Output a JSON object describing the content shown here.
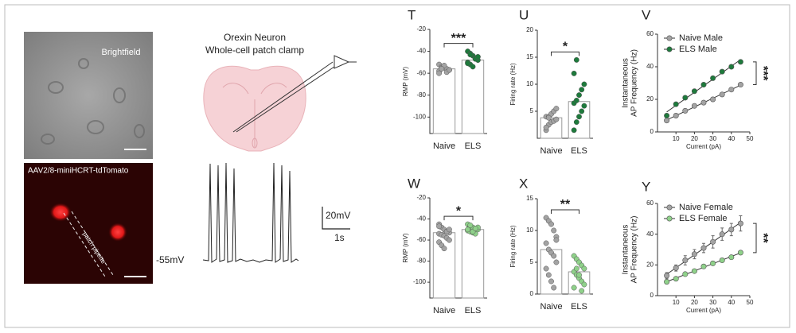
{
  "figure": {
    "brightfield": "Brightfield",
    "virus": "AAV2/8-miniHCRT-tdTomato",
    "pipette": "patch pipette",
    "diagram_title": [
      "Orexin Neuron",
      "Whole-cell patch clamp"
    ],
    "scale_v": "20mV",
    "scale_t": "1s",
    "baseline": "-55mV"
  },
  "chart_data": [
    {
      "type": "bar",
      "label": "T",
      "ylabel": "RMP (mV)",
      "categories": [
        "Naive",
        "ELS"
      ],
      "values": [
        -56,
        -48
      ],
      "points": [
        [
          -52,
          -54,
          -55,
          -56,
          -57,
          -58,
          -55,
          -53,
          -59,
          -57,
          -60,
          -56
        ],
        [
          -40,
          -42,
          -44,
          -46,
          -48,
          -50,
          -52,
          -54,
          -47,
          -45,
          -51,
          -43
        ]
      ],
      "colors": [
        "#a3a3a3",
        "#1e7a3c"
      ],
      "significance": "***",
      "ylim": [
        -115,
        -20
      ],
      "yticks": [
        -100,
        -80,
        -60,
        -40,
        -20
      ]
    },
    {
      "type": "bar",
      "label": "U",
      "ylabel": "Firing rate (Hz)",
      "categories": [
        "Naive",
        "ELS"
      ],
      "values": [
        3.8,
        6.8
      ],
      "points": [
        [
          1.5,
          2.5,
          3,
          3.2,
          3.5,
          4,
          4,
          4.5,
          5,
          5.5,
          2,
          3.8
        ],
        [
          1.5,
          3,
          4,
          5,
          6,
          6.5,
          7,
          8,
          9,
          10,
          12,
          14.5
        ]
      ],
      "colors": [
        "#a3a3a3",
        "#1e7a3c"
      ],
      "significance": "*",
      "ylim": [
        0,
        20
      ],
      "yticks": [
        5,
        10,
        15,
        20
      ]
    },
    {
      "type": "line",
      "label": "V",
      "ylabel": [
        "Instantaneous",
        "AP Frequency (Hz)"
      ],
      "xlabel": "Current (pA)",
      "x": [
        5,
        10,
        15,
        20,
        25,
        30,
        35,
        40,
        45
      ],
      "series": [
        {
          "name": "Naive Male",
          "color": "#a3a3a3",
          "values": [
            7,
            10,
            13,
            16,
            18,
            20,
            23,
            26,
            29
          ]
        },
        {
          "name": "ELS Male",
          "color": "#1e7a3c",
          "values": [
            10,
            17,
            21,
            25,
            29,
            33,
            37,
            40,
            43
          ]
        }
      ],
      "significance": "***",
      "xlim": [
        0,
        50
      ],
      "ylim": [
        0,
        60
      ],
      "xticks": [
        10,
        20,
        30,
        40,
        50
      ],
      "yticks": [
        0,
        20,
        40,
        60
      ]
    },
    {
      "type": "bar",
      "label": "W",
      "ylabel": "RMP (mV)",
      "categories": [
        "Naive",
        "ELS"
      ],
      "values": [
        -53,
        -50
      ],
      "points": [
        [
          -45,
          -48,
          -50,
          -52,
          -53,
          -54,
          -55,
          -56,
          -58,
          -60,
          -62,
          -65,
          -68,
          -52,
          -50,
          -47
        ],
        [
          -45,
          -47,
          -48,
          -49,
          -50,
          -51,
          -52,
          -53,
          -54,
          -48,
          -50,
          -46,
          -52,
          -49
        ]
      ],
      "colors": [
        "#a3a3a3",
        "#8fd18a"
      ],
      "significance": "*",
      "ylim": [
        -115,
        -20
      ],
      "yticks": [
        -100,
        -80,
        -60,
        -40,
        -20
      ]
    },
    {
      "type": "bar",
      "label": "X",
      "ylabel": "Firing rate (Hz)",
      "categories": [
        "Naive",
        "ELS"
      ],
      "values": [
        7,
        3.5
      ],
      "points": [
        [
          12,
          11.5,
          11,
          10,
          9,
          8,
          7,
          6.5,
          6,
          5,
          4,
          3,
          2,
          1,
          8.5
        ],
        [
          6,
          5.5,
          5,
          4.5,
          4,
          3.5,
          3,
          2.5,
          2,
          1.5,
          1,
          4,
          3,
          0.5
        ]
      ],
      "colors": [
        "#a3a3a3",
        "#8fd18a"
      ],
      "significance": "**",
      "ylim": [
        0,
        15
      ],
      "yticks": [
        0,
        5,
        10,
        15
      ]
    },
    {
      "type": "line",
      "label": "Y",
      "ylabel": [
        "Instantaneous",
        "AP Frequency (Hz)"
      ],
      "xlabel": "Current (pA)",
      "x": [
        5,
        10,
        15,
        20,
        25,
        30,
        35,
        40,
        45
      ],
      "series": [
        {
          "name": "Naive Female",
          "color": "#a3a3a3",
          "values": [
            13,
            18,
            23,
            27,
            31,
            35,
            40,
            43,
            47
          ],
          "errors": [
            2,
            2,
            3,
            3,
            3,
            4,
            4,
            4,
            5
          ]
        },
        {
          "name": "ELS Female",
          "color": "#8fd18a",
          "values": [
            9,
            11,
            14,
            16,
            19,
            21,
            23,
            25,
            28
          ]
        }
      ],
      "significance": "**",
      "xlim": [
        0,
        50
      ],
      "ylim": [
        0,
        60
      ],
      "xticks": [
        10,
        20,
        30,
        40,
        50
      ],
      "yticks": [
        0,
        20,
        40,
        60
      ]
    }
  ]
}
